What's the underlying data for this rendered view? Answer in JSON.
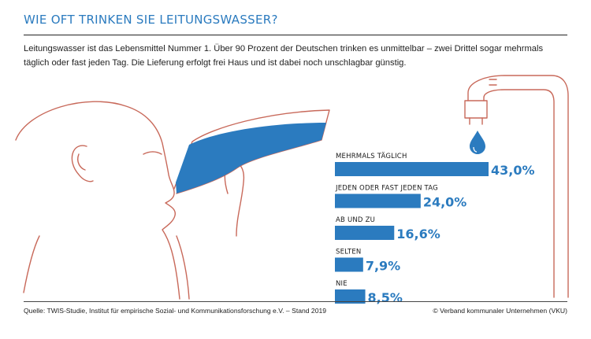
{
  "title": "WIE OFT TRINKEN SIE LEITUNGSWASSER?",
  "intro": "Leitungswasser ist das Lebensmittel Nummer 1. Über 90 Prozent der Deutschen trinken es unmittelbar – zwei Drittel sogar mehrmals täglich oder fast jeden Tag. Die Lieferung erfolgt frei Haus und ist dabei noch unschlagbar günstig.",
  "source": "Quelle: TWIS-Studie, Institut für empirische Sozial- und Kommunikationsforschung e.V. – Stand 2019",
  "credit": "© Verband kommunaler Unternehmen (VKU)",
  "colors": {
    "accent": "#2b7bbf",
    "illustration_line": "#c8695a",
    "text": "#1f1f1f"
  },
  "illustration": {
    "subject": "person-drinking-water-icon",
    "tap": "water-tap-icon",
    "drop": "water-drop-icon"
  },
  "chart_data": {
    "type": "bar",
    "orientation": "horizontal",
    "categories": [
      "MEHRMALS TÄGLICH",
      "JEDEN ODER FAST JEDEN TAG",
      "AB UND ZU",
      "SELTEN",
      "NIE"
    ],
    "values": [
      43.0,
      24.0,
      16.6,
      7.9,
      8.5
    ],
    "value_labels": [
      "43,0%",
      "24,0%",
      "16,6%",
      "7,9%",
      "8,5%"
    ],
    "unit": "%",
    "xlim": [
      0,
      43.0
    ],
    "grid": false,
    "legend": "none"
  }
}
